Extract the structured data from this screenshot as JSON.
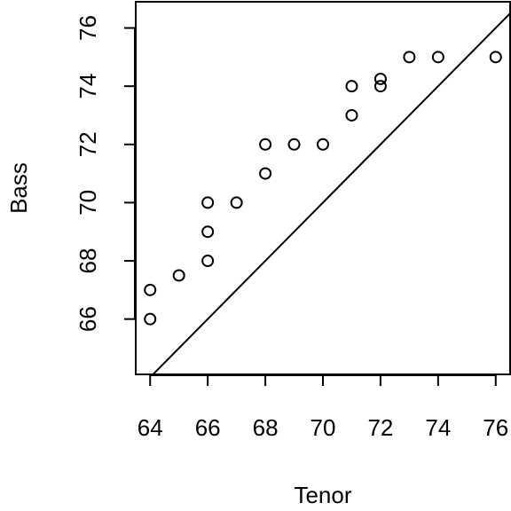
{
  "chart_data": {
    "type": "scatter",
    "title": "",
    "xlabel": "Tenor",
    "ylabel": "Bass",
    "xlim": [
      63.5,
      76.5
    ],
    "ylim": [
      64.1,
      76.9
    ],
    "xticks": [
      64,
      66,
      68,
      70,
      72,
      74,
      76
    ],
    "yticks": [
      66,
      68,
      70,
      72,
      74,
      76
    ],
    "grid": false,
    "marker": "open-circle",
    "reference_line": {
      "type": "identity",
      "slope": 1,
      "intercept": 0
    },
    "points": [
      {
        "x": 64,
        "y": 66
      },
      {
        "x": 64,
        "y": 67
      },
      {
        "x": 65,
        "y": 67.5
      },
      {
        "x": 66,
        "y": 68
      },
      {
        "x": 66,
        "y": 69
      },
      {
        "x": 66,
        "y": 70
      },
      {
        "x": 67,
        "y": 70
      },
      {
        "x": 68,
        "y": 71
      },
      {
        "x": 68,
        "y": 72
      },
      {
        "x": 69,
        "y": 72
      },
      {
        "x": 70,
        "y": 72
      },
      {
        "x": 71,
        "y": 73
      },
      {
        "x": 71,
        "y": 74
      },
      {
        "x": 72,
        "y": 74
      },
      {
        "x": 72,
        "y": 74.25
      },
      {
        "x": 73,
        "y": 75
      },
      {
        "x": 74,
        "y": 75
      },
      {
        "x": 76,
        "y": 75
      }
    ]
  }
}
